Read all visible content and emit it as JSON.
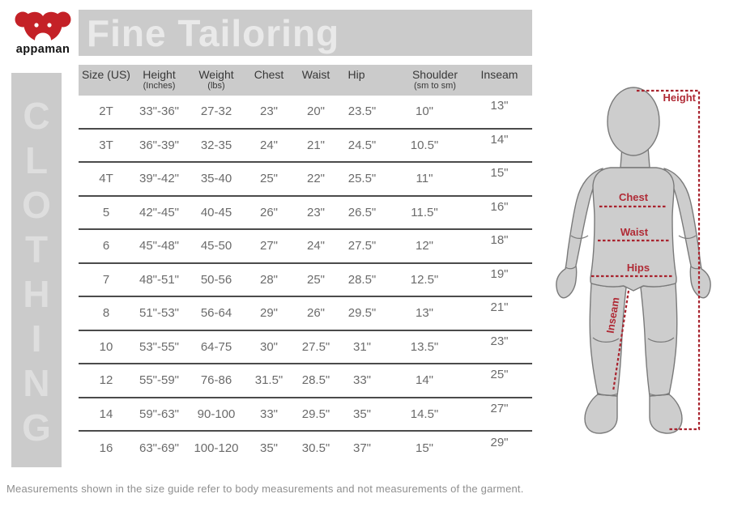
{
  "logo": {
    "brand": "appaman",
    "icon": "monkey-icon"
  },
  "title": "Fine Tailoring",
  "sidebar": {
    "label": "CLOTHING"
  },
  "size_chart": {
    "columns": [
      {
        "label": "Size (US)",
        "sublabel": ""
      },
      {
        "label": "Height",
        "sublabel": "(Inches)"
      },
      {
        "label": "Weight",
        "sublabel": "(lbs)"
      },
      {
        "label": "Chest",
        "sublabel": ""
      },
      {
        "label": "Waist",
        "sublabel": ""
      },
      {
        "label": "Hip",
        "sublabel": ""
      },
      {
        "label": "Shoulder",
        "sublabel": "(sm to sm)"
      },
      {
        "label": "Inseam",
        "sublabel": ""
      }
    ],
    "rows": [
      [
        "2T",
        "33\"-36\"",
        "27-32",
        "23\"",
        "20\"",
        "23.5\"",
        "10\"",
        "13\""
      ],
      [
        "3T",
        "36\"-39\"",
        "32-35",
        "24\"",
        "21\"",
        "24.5\"",
        "10.5\"",
        "14\""
      ],
      [
        "4T",
        "39\"-42\"",
        "35-40",
        "25\"",
        "22\"",
        "25.5\"",
        "11\"",
        "15\""
      ],
      [
        "5",
        "42\"-45\"",
        "40-45",
        "26\"",
        "23\"",
        "26.5\"",
        "11.5\"",
        "16\""
      ],
      [
        "6",
        "45\"-48\"",
        "45-50",
        "27\"",
        "24\"",
        "27.5\"",
        "12\"",
        "18\""
      ],
      [
        "7",
        "48\"-51\"",
        "50-56",
        "28\"",
        "25\"",
        "28.5\"",
        "12.5\"",
        "19\""
      ],
      [
        "8",
        "51\"-53\"",
        "56-64",
        "29\"",
        "26\"",
        "29.5\"",
        "13\"",
        "21\""
      ],
      [
        "10",
        "53\"-55\"",
        "64-75",
        "30\"",
        "27.5\"",
        "31\"",
        "13.5\"",
        "23\""
      ],
      [
        "12",
        "55\"-59\"",
        "76-86",
        "31.5\"",
        "28.5\"",
        "33\"",
        "14\"",
        "25\""
      ],
      [
        "14",
        "59\"-63\"",
        "90-100",
        "33\"",
        "29.5\"",
        "35\"",
        "14.5\"",
        "27\""
      ],
      [
        "16",
        "63\"-69\"",
        "100-120",
        "35\"",
        "30.5\"",
        "37\"",
        "15\"",
        "29\""
      ]
    ]
  },
  "figure": {
    "labels": {
      "height": "Height",
      "chest": "Chest",
      "waist": "Waist",
      "hips": "Hips",
      "inseam": "Inseam"
    }
  },
  "footnote": "Measurements shown in the size guide refer to body measurements and not measurements of the garment.",
  "colors": {
    "accent_red": "#c42127",
    "measure_red": "#a8232e",
    "banner_gray": "#cbcbcb",
    "mannequin_gray": "#cdcdcd",
    "line_dark": "#4b4b4b"
  }
}
